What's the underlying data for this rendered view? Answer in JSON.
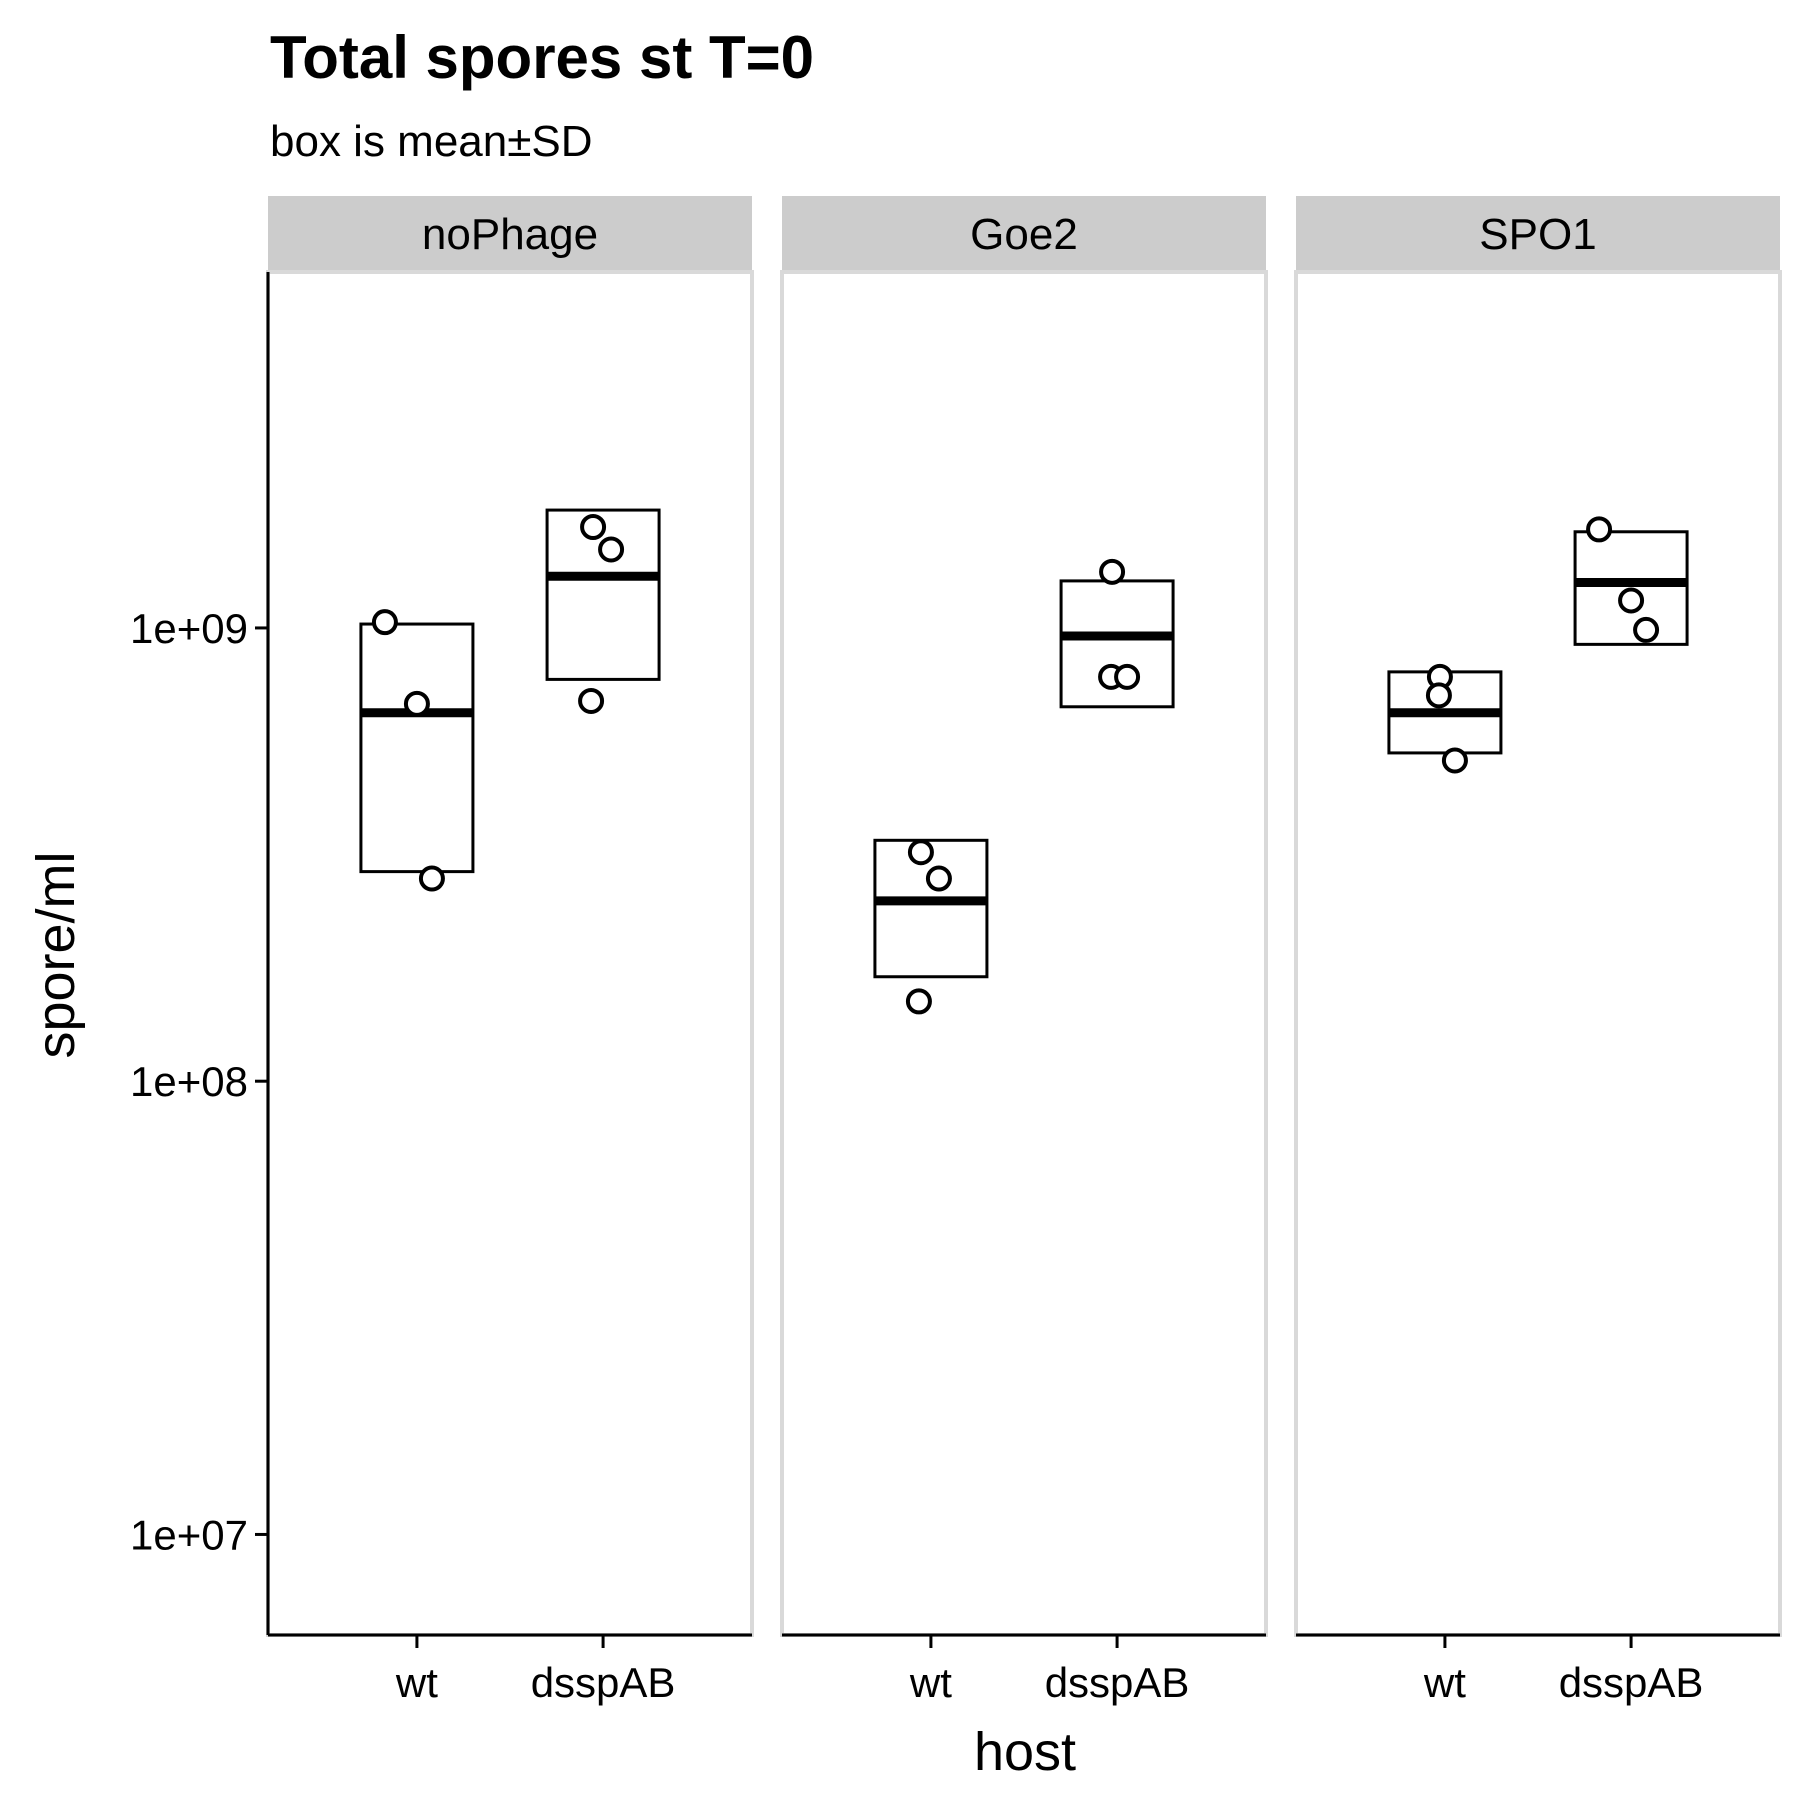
{
  "chart_data": {
    "type": "boxplot",
    "title": "Total spores st T=0",
    "subtitle": "box is mean±SD",
    "xlabel": "host",
    "ylabel": "spore/ml",
    "y_scale": "log10",
    "ylim": [
      6000000,
      6100000000
    ],
    "y_ticks": [
      10000000,
      100000000,
      1000000000
    ],
    "y_tick_labels": [
      "1e+07",
      "1e+08",
      "1e+09"
    ],
    "categories": [
      "wt",
      "dsspAB"
    ],
    "grid": false,
    "legend": "none",
    "facets": [
      {
        "name": "noPhage",
        "groups": [
          {
            "host": "wt",
            "mean": 650000000,
            "low": 290000000,
            "high": 1020000000,
            "points": [
              1030000000,
              680000000,
              280000000
            ]
          },
          {
            "host": "dsspAB",
            "mean": 1300000000,
            "low": 770000000,
            "high": 1820000000,
            "points": [
              1670000000,
              1490000000,
              690000000
            ]
          }
        ]
      },
      {
        "name": "Goe2",
        "groups": [
          {
            "host": "wt",
            "mean": 250000000,
            "low": 170000000,
            "high": 340000000,
            "points": [
              320000000,
              280000000,
              150000000
            ]
          },
          {
            "host": "dsspAB",
            "mean": 960000000,
            "low": 670000000,
            "high": 1270000000,
            "points": [
              1330000000,
              780000000,
              780000000
            ]
          }
        ]
      },
      {
        "name": "SPO1",
        "groups": [
          {
            "host": "wt",
            "mean": 650000000,
            "low": 530000000,
            "high": 800000000,
            "points": [
              780000000,
              710000000,
              510000000
            ]
          },
          {
            "host": "dsspAB",
            "mean": 1260000000,
            "low": 920000000,
            "high": 1630000000,
            "points": [
              1650000000,
              1150000000,
              990000000
            ]
          }
        ]
      }
    ]
  }
}
